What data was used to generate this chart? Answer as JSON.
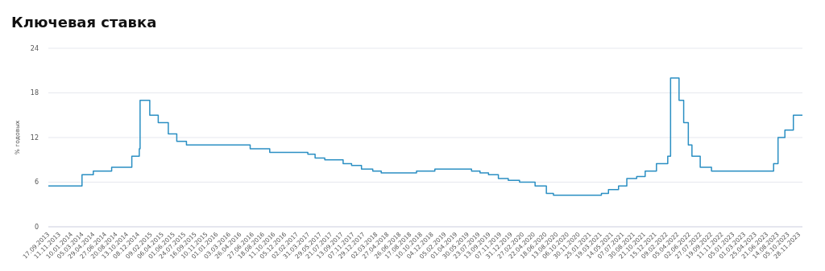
{
  "chart_data": {
    "type": "step",
    "title": "Ключевая ставка",
    "ylabel": "% годовых",
    "grid": "y",
    "marker": "none",
    "line_style": "solid",
    "x": [
      "2013-09-17",
      "2014-03-03",
      "2014-04-28",
      "2014-07-28",
      "2014-11-05",
      "2014-12-12",
      "2014-12-16",
      "2015-02-02",
      "2015-03-16",
      "2015-05-05",
      "2015-06-16",
      "2015-08-03",
      "2016-06-14",
      "2016-09-19",
      "2017-03-27",
      "2017-05-02",
      "2017-06-19",
      "2017-09-18",
      "2017-10-30",
      "2017-12-18",
      "2018-02-12",
      "2018-03-26",
      "2018-09-17",
      "2018-12-17",
      "2019-06-17",
      "2019-07-29",
      "2019-09-09",
      "2019-10-28",
      "2019-12-16",
      "2020-02-10",
      "2020-04-27",
      "2020-06-22",
      "2020-07-27",
      "2021-03-22",
      "2021-04-26",
      "2021-06-15",
      "2021-07-26",
      "2021-09-13",
      "2021-10-25",
      "2021-12-20",
      "2022-02-14",
      "2022-02-28",
      "2022-04-11",
      "2022-05-04",
      "2022-05-27",
      "2022-06-14",
      "2022-07-25",
      "2022-09-19",
      "2023-07-24",
      "2023-08-15",
      "2023-09-18",
      "2023-10-30",
      "2023-12-14"
    ],
    "series": [
      {
        "color": "#2b8fc3",
        "values": [
          5.5,
          7,
          7.5,
          8,
          9.5,
          10.5,
          17,
          15,
          14,
          12.5,
          11.5,
          11,
          10.5,
          10,
          9.75,
          9.25,
          9,
          8.5,
          8.25,
          7.75,
          7.5,
          7.25,
          7.5,
          7.75,
          7.5,
          7.25,
          7,
          6.5,
          6.25,
          6,
          5.5,
          4.5,
          4.25,
          4.5,
          5,
          5.5,
          6.5,
          6.75,
          7.5,
          8.5,
          9.5,
          20,
          17,
          14,
          11,
          9.5,
          8,
          7.5,
          8.5,
          12,
          13,
          15,
          15
        ]
      }
    ],
    "ylim": [
      0,
      24
    ],
    "yticks": [
      0,
      6,
      12,
      18,
      24
    ],
    "xlim": [
      "2013-09-17",
      "2023-12-14"
    ],
    "xticks": [
      {
        "value": "2013-09-17",
        "label": "17.09.2013"
      },
      {
        "value": "2013-11-11",
        "label": "11.11.2013"
      },
      {
        "value": "2014-01-10",
        "label": "10.01.2014"
      },
      {
        "value": "2014-03-05",
        "label": "05.03.2014"
      },
      {
        "value": "2014-04-29",
        "label": "29.04.2014"
      },
      {
        "value": "2014-06-27",
        "label": "27.06.2014"
      },
      {
        "value": "2014-08-20",
        "label": "20.08.2014"
      },
      {
        "value": "2014-10-13",
        "label": "13.10.2014"
      },
      {
        "value": "2014-12-08",
        "label": "08.12.2014"
      },
      {
        "value": "2015-02-09",
        "label": "09.02.2015"
      },
      {
        "value": "2015-04-06",
        "label": "06.04.2015"
      },
      {
        "value": "2015-06-01",
        "label": "01.06.2015"
      },
      {
        "value": "2015-07-24",
        "label": "24.07.2015"
      },
      {
        "value": "2015-09-16",
        "label": "16.09.2015"
      },
      {
        "value": "2015-11-10",
        "label": "10.11.2015"
      },
      {
        "value": "2016-01-01",
        "label": "01.01.2016"
      },
      {
        "value": "2016-03-03",
        "label": "03.03.2016"
      },
      {
        "value": "2016-04-26",
        "label": "26.04.2016"
      },
      {
        "value": "2016-06-27",
        "label": "27.06.2016"
      },
      {
        "value": "2016-08-18",
        "label": "18.08.2016"
      },
      {
        "value": "2016-10-11",
        "label": "11.10.2016"
      },
      {
        "value": "2016-12-05",
        "label": "05.12.2016"
      },
      {
        "value": "2017-02-02",
        "label": "02.02.2017"
      },
      {
        "value": "2017-03-31",
        "label": "31.03.2017"
      },
      {
        "value": "2017-05-29",
        "label": "29.05.2017"
      },
      {
        "value": "2017-07-21",
        "label": "21.07.2017"
      },
      {
        "value": "2017-09-13",
        "label": "13.09.2017"
      },
      {
        "value": "2017-11-07",
        "label": "07.11.2017"
      },
      {
        "value": "2017-12-29",
        "label": "29.12.2017"
      },
      {
        "value": "2018-03-02",
        "label": "02.03.2018"
      },
      {
        "value": "2018-04-27",
        "label": "27.04.2018"
      },
      {
        "value": "2018-06-26",
        "label": "26.06.2018"
      },
      {
        "value": "2018-08-17",
        "label": "17.08.2018"
      },
      {
        "value": "2018-10-10",
        "label": "10.10.2018"
      },
      {
        "value": "2018-12-04",
        "label": "04.12.2018"
      },
      {
        "value": "2019-02-05",
        "label": "05.02.2019"
      },
      {
        "value": "2019-04-01",
        "label": "01.04.2019"
      },
      {
        "value": "2019-05-30",
        "label": "30.05.2019"
      },
      {
        "value": "2019-07-23",
        "label": "23.07.2019"
      },
      {
        "value": "2019-09-13",
        "label": "13.09.2019"
      },
      {
        "value": "2019-11-07",
        "label": "07.11.2019"
      },
      {
        "value": "2019-12-31",
        "label": "31.12.2019"
      },
      {
        "value": "2020-02-27",
        "label": "27.02.2020"
      },
      {
        "value": "2020-04-22",
        "label": "22.04.2020"
      },
      {
        "value": "2020-06-18",
        "label": "18.06.2020"
      },
      {
        "value": "2020-08-13",
        "label": "13.08.2020"
      },
      {
        "value": "2020-10-06",
        "label": "06.10.2020"
      },
      {
        "value": "2020-11-30",
        "label": "30.11.2020"
      },
      {
        "value": "2021-01-25",
        "label": "25.01.2021"
      },
      {
        "value": "2021-03-19",
        "label": "19.03.2021"
      },
      {
        "value": "2021-05-14",
        "label": "14.05.2021"
      },
      {
        "value": "2021-07-07",
        "label": "07.07.2021"
      },
      {
        "value": "2021-08-30",
        "label": "30.08.2021"
      },
      {
        "value": "2021-10-21",
        "label": "21.10.2021"
      },
      {
        "value": "2021-12-15",
        "label": "15.12.2021"
      },
      {
        "value": "2022-02-09",
        "label": "09.02.2022"
      },
      {
        "value": "2022-04-05",
        "label": "05.04.2022"
      },
      {
        "value": "2022-06-02",
        "label": "02.06.2022"
      },
      {
        "value": "2022-07-27",
        "label": "27.07.2022"
      },
      {
        "value": "2022-09-19",
        "label": "19.09.2022"
      },
      {
        "value": "2022-11-11",
        "label": "11.11.2022"
      },
      {
        "value": "2023-01-05",
        "label": "05.01.2023"
      },
      {
        "value": "2023-03-01",
        "label": "01.03.2023"
      },
      {
        "value": "2023-04-25",
        "label": "25.04.2023"
      },
      {
        "value": "2023-06-21",
        "label": "21.06.2023"
      },
      {
        "value": "2023-08-14",
        "label": "14.08.2023"
      },
      {
        "value": "2023-10-05",
        "label": "05.10.2023"
      },
      {
        "value": "2023-11-28",
        "label": "28.11.2023"
      }
    ]
  }
}
